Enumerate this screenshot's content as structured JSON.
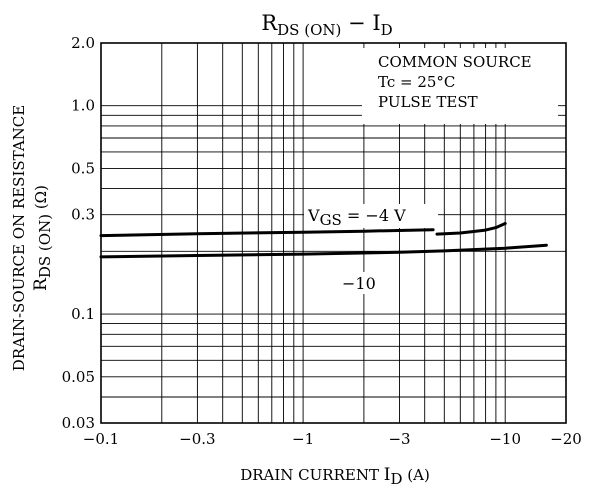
{
  "chart_data": {
    "type": "line",
    "title": {
      "main": "R",
      "main_sub": "DS (ON)",
      "sep": " − ",
      "var": "I",
      "var_sub": "D"
    },
    "xlabel": {
      "text": "DRAIN CURRENT",
      "var": "I",
      "var_sub": "D",
      "unit": "(A)"
    },
    "ylabel": {
      "line1": "DRAIN-SOURCE ON RESISTANCE",
      "var": "R",
      "var_sub": "DS (ON)",
      "unit": "(Ω)"
    },
    "x_scale": "log",
    "y_scale": "log",
    "xlim": [
      -0.1,
      -20
    ],
    "ylim": [
      0.03,
      2.0
    ],
    "x_ticks": [
      {
        "value": -0.1,
        "label": "−0.1"
      },
      {
        "value": -0.3,
        "label": "−0.3"
      },
      {
        "value": -1,
        "label": "−1"
      },
      {
        "value": -3,
        "label": "−3"
      },
      {
        "value": -10,
        "label": "−10"
      },
      {
        "value": -20,
        "label": "−20"
      }
    ],
    "y_ticks": [
      {
        "value": 0.03,
        "label": "0.03"
      },
      {
        "value": 0.05,
        "label": "0.05"
      },
      {
        "value": 0.1,
        "label": "0.1"
      },
      {
        "value": 0.3,
        "label": "0.3"
      },
      {
        "value": 0.5,
        "label": "0.5"
      },
      {
        "value": 1.0,
        "label": "1.0"
      },
      {
        "value": 2.0,
        "label": "2.0"
      }
    ],
    "grid": true,
    "conditions": [
      "COMMON SOURCE",
      "Tc = 25°C",
      "PULSE TEST"
    ],
    "series": [
      {
        "label": {
          "var": "V",
          "var_sub": "GS",
          "text": " = −4 V"
        },
        "segments": [
          {
            "x": [
              -0.1,
              -0.3,
              -1,
              -2,
              -4.4
            ],
            "y": [
              0.238,
              0.243,
              0.247,
              0.25,
              0.254
            ]
          },
          {
            "x": [
              -4.6,
              -6,
              -8,
              -9,
              -10
            ],
            "y": [
              0.242,
              0.245,
              0.253,
              0.26,
              0.272
            ]
          }
        ]
      },
      {
        "label": {
          "text": "−10"
        },
        "segments": [
          {
            "x": [
              -0.1,
              -0.3,
              -1,
              -3,
              -5,
              -10,
              -16
            ],
            "y": [
              0.188,
              0.191,
              0.194,
              0.198,
              0.201,
              0.207,
              0.214
            ]
          }
        ]
      }
    ]
  }
}
